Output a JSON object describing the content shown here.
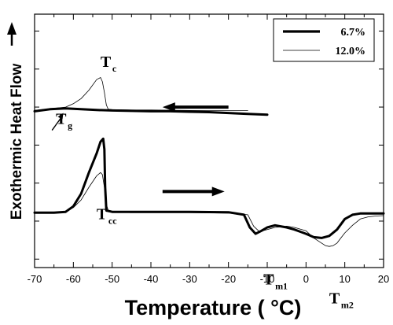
{
  "chart_data": {
    "type": "line",
    "xlabel": "Temperature ( °C)",
    "ylabel": "Exothermic Heat Flow",
    "xlim": [
      -70,
      20
    ],
    "xticks": [
      "-70",
      "-60",
      "-50",
      "-40",
      "-30",
      "-20",
      "-10",
      "0",
      "10",
      "20"
    ],
    "yticks_shown": false,
    "legend": {
      "placement": "top-right",
      "entries": [
        "6.7%",
        "12.0%"
      ]
    },
    "annotations": [
      {
        "text": "T",
        "sub": "c",
        "x": -53,
        "y": 7.55
      },
      {
        "text": "T",
        "sub": "g",
        "x": -64.5,
        "y": 6.2
      },
      {
        "text": "T",
        "sub": "cc",
        "x": -54,
        "y": 3.95
      },
      {
        "text": "T",
        "sub": "m1",
        "x": -11,
        "y": 2.4
      },
      {
        "text": "T",
        "sub": "m2",
        "x": 6,
        "y": 1.95
      }
    ],
    "arrows": [
      {
        "direction": "left",
        "x_from": -20,
        "x_to": -37,
        "y": 6.6
      },
      {
        "direction": "right",
        "x_from": -37,
        "x_to": -21,
        "y": 4.6
      }
    ],
    "series": [
      {
        "name": "6.7%",
        "stroke": "thick",
        "segments": [
          {
            "x": [
              -70,
              -66,
              -62,
              -58,
              -54,
              -50,
              -45,
              -40,
              -35,
              -30,
              -25,
              -20,
              -15,
              -10
            ],
            "y": [
              6.5,
              6.55,
              6.57,
              6.55,
              6.53,
              6.52,
              6.51,
              6.5,
              6.5,
              6.49,
              6.48,
              6.46,
              6.44,
              6.42
            ]
          },
          {
            "x": [
              -70,
              -65,
              -62,
              -60,
              -58,
              -56,
              -54,
              -53,
              -52.3,
              -52,
              -51.8,
              -51.5,
              -50,
              -45,
              -40,
              -30,
              -20,
              -16,
              -14.5,
              -13,
              -11.5,
              -10,
              -8,
              -5,
              -3,
              0,
              2,
              4,
              6,
              8,
              10,
              12,
              14,
              20
            ],
            "y": [
              4.1,
              4.1,
              4.12,
              4.25,
              4.55,
              5.05,
              5.5,
              5.78,
              5.85,
              5.6,
              4.7,
              4.15,
              4.12,
              4.12,
              4.12,
              4.12,
              4.11,
              4.05,
              3.75,
              3.6,
              3.67,
              3.75,
              3.8,
              3.75,
              3.7,
              3.6,
              3.52,
              3.5,
              3.55,
              3.7,
              3.95,
              4.05,
              4.08,
              4.08
            ]
          }
        ]
      },
      {
        "name": "12.0%",
        "stroke": "thin",
        "segments": [
          {
            "x": [
              -70,
              -66,
              -62,
              -60,
              -58,
              -56,
              -54,
              -53,
              -52.5,
              -52,
              -51.5,
              -51,
              -50,
              -45,
              -40,
              -30,
              -20,
              -15
            ],
            "y": [
              6.52,
              6.56,
              6.6,
              6.68,
              6.8,
              7.0,
              7.25,
              7.3,
              7.2,
              6.95,
              6.65,
              6.55,
              6.54,
              6.53,
              6.53,
              6.52,
              6.52,
              6.52
            ]
          },
          {
            "x": [
              -70,
              -65,
              -62,
              -60,
              -58,
              -56,
              -54,
              -53,
              -52.5,
              -52,
              -51.5,
              -51,
              -50,
              -45,
              -40,
              -30,
              -20,
              -15,
              -13.5,
              -12,
              -10,
              -8,
              -5,
              -3,
              0,
              2,
              4,
              5,
              6,
              7,
              8,
              9,
              10,
              12,
              14,
              16,
              18,
              20
            ],
            "y": [
              4.1,
              4.1,
              4.12,
              4.22,
              4.4,
              4.7,
              4.97,
              5.05,
              5.0,
              4.7,
              4.3,
              4.15,
              4.12,
              4.1,
              4.1,
              4.1,
              4.09,
              4.05,
              3.78,
              3.65,
              3.7,
              3.75,
              3.78,
              3.75,
              3.67,
              3.5,
              3.38,
              3.32,
              3.3,
              3.32,
              3.38,
              3.5,
              3.62,
              3.8,
              3.95,
              4.0,
              4.02,
              4.03
            ]
          }
        ]
      }
    ]
  }
}
